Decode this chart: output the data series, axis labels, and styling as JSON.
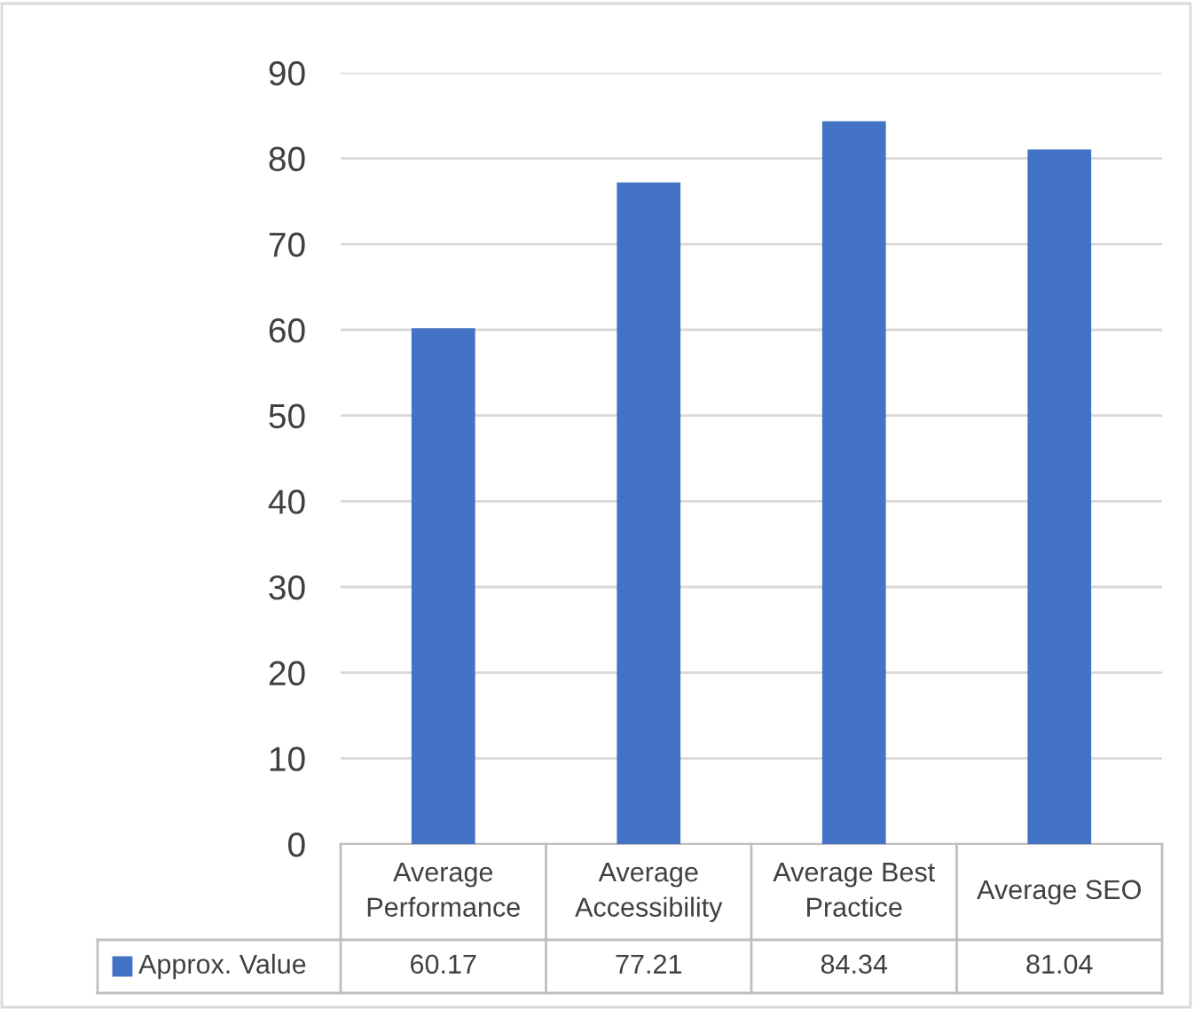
{
  "chart_data": {
    "type": "bar",
    "categories": [
      "Average Performance",
      "Average Accessibility",
      "Average Best Practice",
      "Average SEO"
    ],
    "series": [
      {
        "name": "Approx. Value",
        "color": "#4472c4",
        "values": [
          60.17,
          77.21,
          84.34,
          81.04
        ]
      }
    ],
    "ylim": [
      0,
      90
    ],
    "yticks": [
      0,
      10,
      20,
      30,
      40,
      50,
      60,
      70,
      80,
      90
    ],
    "grid": "y",
    "data_labels": true,
    "legend": "bottom left"
  }
}
